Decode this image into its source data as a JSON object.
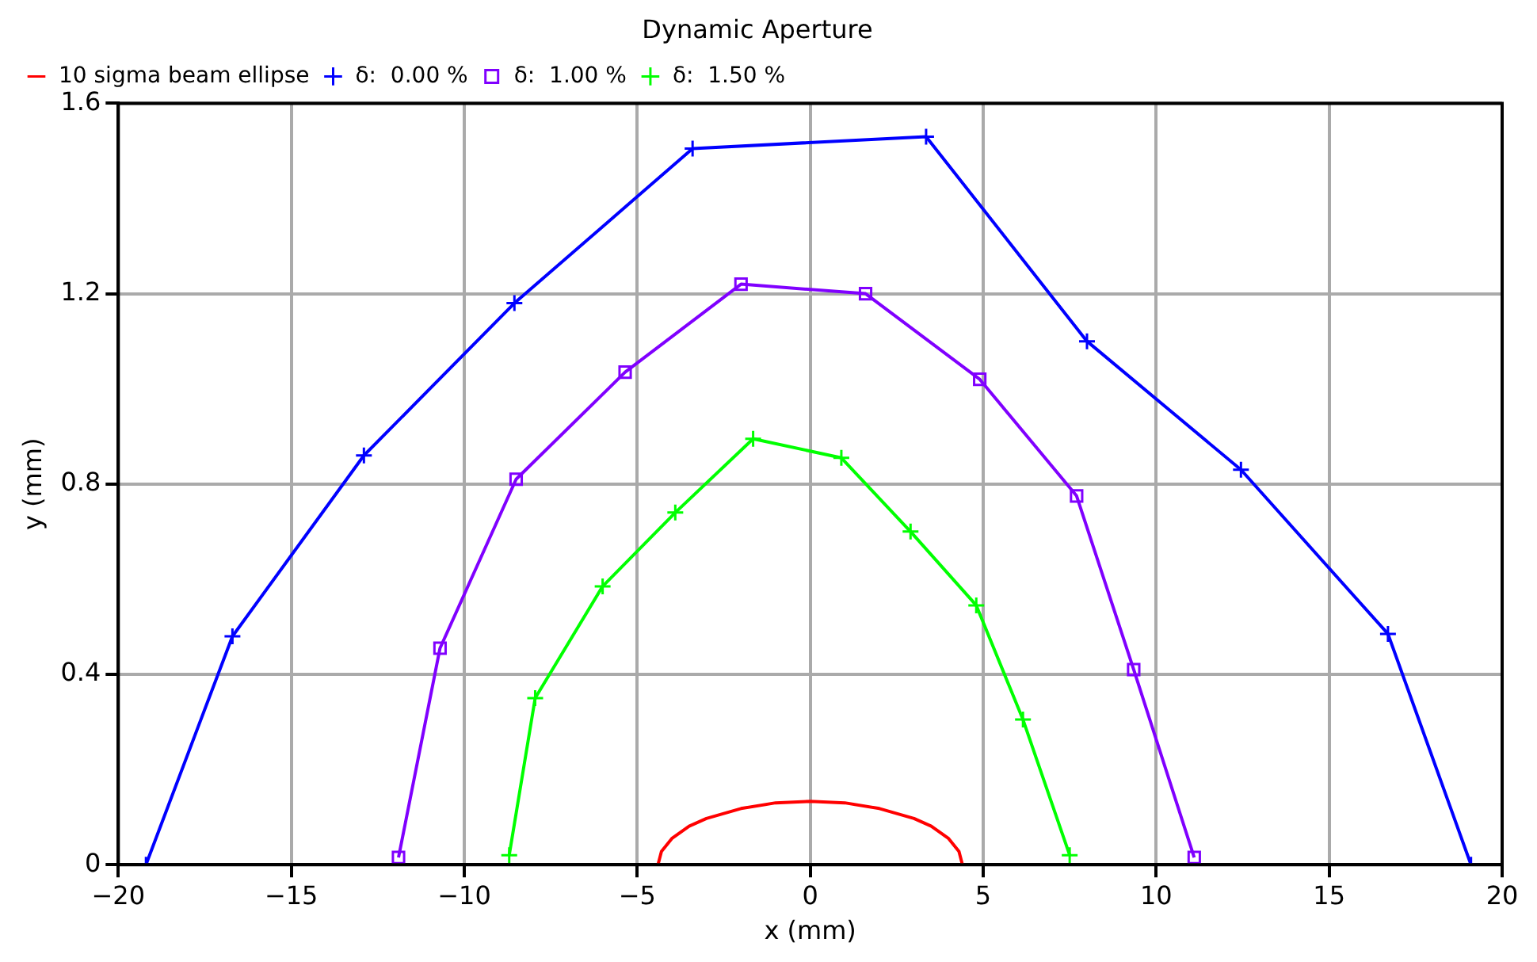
{
  "chart_data": {
    "type": "line",
    "title": "Dynamic Aperture",
    "xlabel": "x (mm)",
    "ylabel": "y (mm)",
    "xlim": [
      -20,
      20
    ],
    "xticks": [
      -20,
      -15,
      -10,
      -5,
      0,
      5,
      10,
      15,
      20
    ],
    "ylim": [
      0,
      1.6
    ],
    "yticks": [
      0,
      0.4,
      0.8,
      1.2,
      1.6
    ],
    "grid": true,
    "legend": "top left",
    "series": [
      {
        "name": "10 sigma beam ellipse",
        "color": "#ff0000",
        "marker": "none",
        "x": [
          -4.4,
          -4.3,
          -4,
          -3.5,
          -3,
          -2,
          -1,
          0,
          1,
          2,
          3,
          3.5,
          4,
          4.3,
          4.4
        ],
        "values": [
          0,
          0.028,
          0.055,
          0.081,
          0.097,
          0.118,
          0.13,
          0.133,
          0.13,
          0.118,
          0.097,
          0.081,
          0.055,
          0.028,
          0
        ]
      },
      {
        "name": "δ:  0.00 %",
        "color": "#0000ff",
        "marker": "cross",
        "x": [
          -19.2,
          -16.7,
          -12.9,
          -8.55,
          -3.4,
          3.35,
          8,
          12.45,
          16.7,
          19.1
        ],
        "values": [
          0,
          0.48,
          0.86,
          1.18,
          1.505,
          1.53,
          1.1,
          0.83,
          0.485,
          0
        ]
      },
      {
        "name": "δ:  1.00 %",
        "color": "#8000ff",
        "marker": "square",
        "x": [
          -11.9,
          -10.7,
          -8.5,
          -5.35,
          -2,
          1.6,
          4.9,
          7.7,
          9.35,
          11.1
        ],
        "values": [
          0.015,
          0.455,
          0.81,
          1.035,
          1.22,
          1.2,
          1.02,
          0.775,
          0.41,
          0.015
        ]
      },
      {
        "name": "δ:  1.50 %",
        "color": "#00ff00",
        "marker": "cross",
        "x": [
          -8.7,
          -7.95,
          -6,
          -3.9,
          -1.65,
          0.9,
          2.9,
          4.8,
          6.15,
          7.5
        ],
        "values": [
          0.02,
          0.35,
          0.585,
          0.74,
          0.895,
          0.855,
          0.7,
          0.545,
          0.305,
          0.02
        ]
      }
    ]
  }
}
